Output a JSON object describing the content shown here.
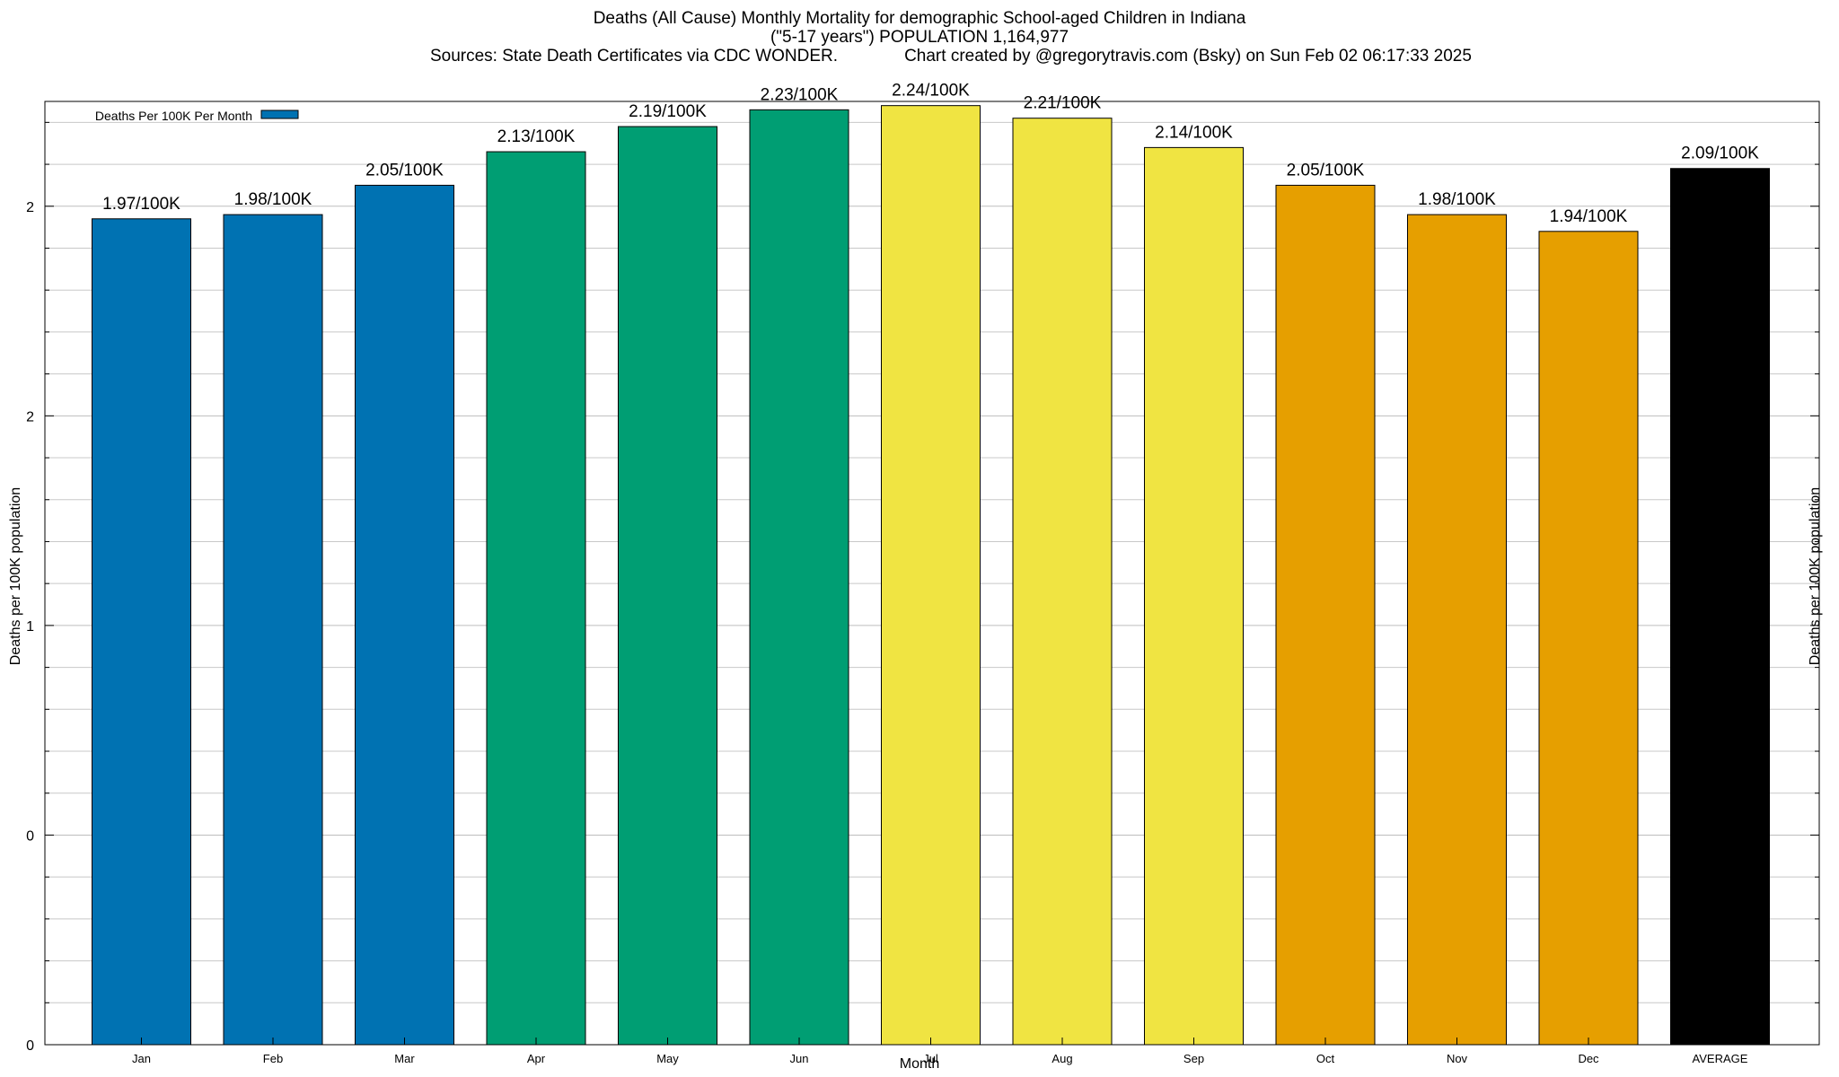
{
  "chart_data": {
    "type": "bar",
    "title_lines": [
      "Deaths (All Cause) Monthly Mortality for demographic School-aged Children in Indiana",
      "(\"5-17 years\") POPULATION 1,164,977"
    ],
    "sources": "Sources: State Death Certificates via CDC WONDER.",
    "credit": "Chart created by @gregorytravis.com (Bsky) on Sun Feb 02 06:17:33 2025",
    "xlabel": "Month",
    "ylabel": "Deaths per 100K population",
    "y2label": "Deaths per 100K population",
    "categories": [
      "Jan",
      "Feb",
      "Mar",
      "Apr",
      "May",
      "Jun",
      "Jul",
      "Aug",
      "Sep",
      "Oct",
      "Nov",
      "Dec",
      "AVERAGE"
    ],
    "values": [
      1.97,
      1.98,
      2.05,
      2.13,
      2.19,
      2.23,
      2.24,
      2.21,
      2.14,
      2.05,
      1.98,
      1.94,
      2.09
    ],
    "value_labels": [
      "1.97/100K",
      "1.98/100K",
      "2.05/100K",
      "2.13/100K",
      "2.19/100K",
      "2.23/100K",
      "2.24/100K",
      "2.21/100K",
      "2.14/100K",
      "2.05/100K",
      "1.98/100K",
      "1.94/100K",
      "2.09/100K"
    ],
    "bar_colors": [
      "#0072b2",
      "#0072b2",
      "#0072b2",
      "#009e73",
      "#009e73",
      "#009e73",
      "#f0e442",
      "#f0e442",
      "#f0e442",
      "#e69f00",
      "#e69f00",
      "#e69f00",
      "#000000"
    ],
    "yticks": [
      {
        "value": 0,
        "label": "0"
      },
      {
        "value": 0.5,
        "label": "0"
      },
      {
        "value": 1.0,
        "label": "1"
      },
      {
        "value": 1.5,
        "label": "2"
      },
      {
        "value": 2.0,
        "label": "2"
      }
    ],
    "ylim": [
      0,
      2.25
    ],
    "minor_gridlines": [
      0.1,
      0.2,
      0.3,
      0.4,
      0.6,
      0.7,
      0.8,
      0.9,
      1.1,
      1.2,
      1.3,
      1.4,
      1.6,
      1.7,
      1.8,
      1.9,
      2.1,
      2.2
    ],
    "grid": true,
    "legend": {
      "label": "Deaths Per 100K Per Month",
      "color": "#0072b2",
      "placement": "top-left"
    }
  }
}
